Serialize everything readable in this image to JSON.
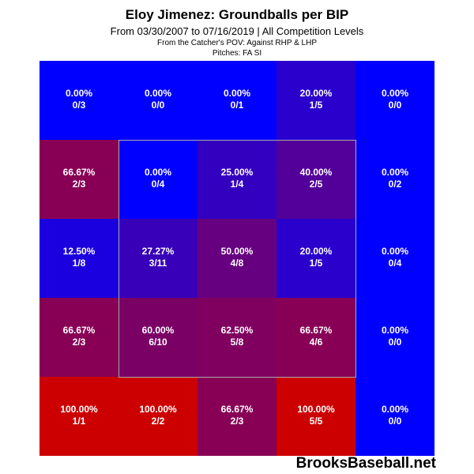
{
  "header": {
    "title": "Eloy Jimenez: Groundballs per BIP",
    "subtitle": "From 03/30/2007 to 07/16/2019 | All Competition Levels",
    "pov": "From the Catcher's POV:  Against RHP & LHP",
    "pitches": "Pitches:  FA  SI"
  },
  "watermark": "BrooksBaseball.net",
  "colors": {
    "low": "#0000ff",
    "high": "#cc0000"
  },
  "chart_data": {
    "type": "heatmap",
    "title": "Eloy Jimenez: Groundballs per BIP",
    "rows": 5,
    "cols": 5,
    "strike_zone": {
      "rows": [
        1,
        3
      ],
      "cols": [
        1,
        3
      ]
    },
    "cells": [
      [
        {
          "pct": "0.00%",
          "frac": "0/3",
          "value": 0.0
        },
        {
          "pct": "0.00%",
          "frac": "0/0",
          "value": 0.0
        },
        {
          "pct": "0.00%",
          "frac": "0/1",
          "value": 0.0
        },
        {
          "pct": "20.00%",
          "frac": "1/5",
          "value": 0.2
        },
        {
          "pct": "0.00%",
          "frac": "0/0",
          "value": 0.0
        }
      ],
      [
        {
          "pct": "66.67%",
          "frac": "2/3",
          "value": 0.6667
        },
        {
          "pct": "0.00%",
          "frac": "0/4",
          "value": 0.0
        },
        {
          "pct": "25.00%",
          "frac": "1/4",
          "value": 0.25
        },
        {
          "pct": "40.00%",
          "frac": "2/5",
          "value": 0.4
        },
        {
          "pct": "0.00%",
          "frac": "0/2",
          "value": 0.0
        }
      ],
      [
        {
          "pct": "12.50%",
          "frac": "1/8",
          "value": 0.125
        },
        {
          "pct": "27.27%",
          "frac": "3/11",
          "value": 0.2727
        },
        {
          "pct": "50.00%",
          "frac": "4/8",
          "value": 0.5
        },
        {
          "pct": "20.00%",
          "frac": "1/5",
          "value": 0.2
        },
        {
          "pct": "0.00%",
          "frac": "0/4",
          "value": 0.0
        }
      ],
      [
        {
          "pct": "66.67%",
          "frac": "2/3",
          "value": 0.6667
        },
        {
          "pct": "60.00%",
          "frac": "6/10",
          "value": 0.6
        },
        {
          "pct": "62.50%",
          "frac": "5/8",
          "value": 0.625
        },
        {
          "pct": "66.67%",
          "frac": "4/6",
          "value": 0.6667
        },
        {
          "pct": "0.00%",
          "frac": "0/0",
          "value": 0.0
        }
      ],
      [
        {
          "pct": "100.00%",
          "frac": "1/1",
          "value": 1.0
        },
        {
          "pct": "100.00%",
          "frac": "2/2",
          "value": 1.0
        },
        {
          "pct": "66.67%",
          "frac": "2/3",
          "value": 0.6667
        },
        {
          "pct": "100.00%",
          "frac": "5/5",
          "value": 1.0
        },
        {
          "pct": "0.00%",
          "frac": "0/0",
          "value": 0.0
        }
      ]
    ]
  }
}
